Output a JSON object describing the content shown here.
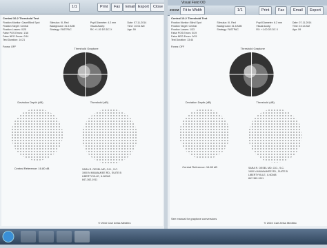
{
  "left_window": {
    "toolbar": {
      "page": "1/1",
      "buttons": [
        "Print",
        "Fax",
        "Email",
        "Export",
        "Close"
      ]
    },
    "report": {
      "test": "Central 10-2 Threshold Test",
      "col1": [
        "Fixation Monitor: Gaze/Blind Spot",
        "Fixation Target: Central",
        "Fixation Losses: 0/25",
        "False POS Errors: 1/16",
        "False NEG Errors: 0/14",
        "Test Duration: 14:21",
        "",
        "Fovea: OFF"
      ],
      "col2": [
        "Stimulus: III, Red",
        "Background: 31.5 ASB",
        "Strategy: FASTPAC"
      ],
      "col3": [
        "Pupil Diameter: 4.2 mm",
        "Visual Acuity:",
        "RX: +1.00 DS DC X"
      ],
      "col4": [
        "Date: 07-11-2014",
        "Time: 10:01 AM",
        "Age: 59"
      ],
      "graytone_title": "Threshold Graytone",
      "deviation_title": "Deviation Depth (dB)",
      "threshold_title": "Threshold (dB)",
      "central_reference": "Central Reference: 16.80 dB",
      "address": [
        "SARA R. OESEL MD, O.D., S.C.",
        "1900 N MILWAUKEE RD., SUITE B",
        "LIBERTYVILLE, IL 60048",
        "847-362-1911"
      ],
      "footer": "© 2010 Carl Zeiss Meditec"
    }
  },
  "right_window": {
    "title": "Visual Field OD",
    "toolbar": {
      "zoom_label": "ZOOM",
      "zoom": "Fit to Width",
      "page": "1/1",
      "buttons": [
        "Print",
        "Fax",
        "Email",
        "Export"
      ]
    },
    "report": {
      "test": "Central 10-2 Threshold Test",
      "col1": [
        "Fixation Monitor: Blind Spot",
        "Fixation Target: Central",
        "Fixation Losses: 1/33",
        "False POS Errors: 0/19",
        "False NEG Errors: 0/15",
        "Test Duration: 13:44",
        "",
        "Fovea: OFF"
      ],
      "col2": [
        "Stimulus: III, Red",
        "Background: 31.5 ASB",
        "Strategy: FASTPAC"
      ],
      "col3": [
        "Pupil Diameter: 6.2 mm",
        "Visual Acuity:",
        "RX: +1.00 DS DC X"
      ],
      "col4": [
        "Date: 07-11-2014",
        "Time: 10:14 AM",
        "Age: 59"
      ],
      "graytone_title": "Threshold Graytone",
      "deviation_title": "Deviation Depth (dB)",
      "threshold_title": "Threshold (dB)",
      "central_reference": "Central Reference: 16.80 dB",
      "address": [
        "SARA R. OESEL MD, O.D., S.C.",
        "1900 N MILWAUKEE RD., SUITE B",
        "LIBERTYVILLE, IL 60048",
        "847-362-1911"
      ],
      "note": "See manual for graytone conversions",
      "footer": "© 2010 Carl Zeiss Meditec"
    }
  }
}
